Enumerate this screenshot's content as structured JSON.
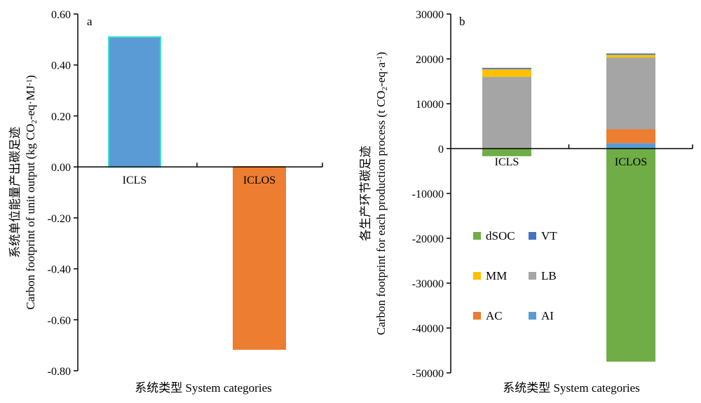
{
  "chart_data": [
    {
      "type": "bar",
      "panel_label": "a",
      "categories": [
        "ICLS",
        "ICLOS"
      ],
      "values": [
        0.51,
        -0.715
      ],
      "colors": [
        "#5b9bd5",
        "#ed7d31"
      ],
      "outline_colors": [
        "#40e0d0",
        "#ed7d31"
      ],
      "ylim": [
        -0.8,
        0.6
      ],
      "yticks": [
        "0.60",
        "0.40",
        "0.20",
        "0.00",
        "-0.20",
        "-0.40",
        "-0.60",
        "-0.80"
      ],
      "ytick_values": [
        0.6,
        0.4,
        0.2,
        0.0,
        -0.2,
        -0.4,
        -0.6,
        -0.8
      ],
      "ylabel_cn": "系统单位能量产出碳足迹",
      "ylabel_en_pre": "Carbon footprint of unit output (kg CO",
      "ylabel_en_sub": "2",
      "ylabel_en_mid": "-eq·MJ",
      "ylabel_en_sup": "-1",
      "ylabel_en_post": ")",
      "xlabel": "系统类型 System categories",
      "grid": false
    },
    {
      "type": "bar",
      "stacked": true,
      "panel_label": "b",
      "categories": [
        "ICLS",
        "ICLOS"
      ],
      "series": [
        {
          "name": "dSOC",
          "color": "#70ad47",
          "values": [
            -1700,
            -47500
          ]
        },
        {
          "name": "AI",
          "color": "#5b9bd5",
          "values": [
            0,
            1200
          ]
        },
        {
          "name": "AC",
          "color": "#ed7d31",
          "values": [
            0,
            3100
          ]
        },
        {
          "name": "LB",
          "color": "#a5a5a5",
          "values": [
            16000,
            16000
          ]
        },
        {
          "name": "MM",
          "color": "#ffc000",
          "values": [
            1700,
            600
          ]
        },
        {
          "name": "VT",
          "color": "#4472c4",
          "values": [
            300,
            300
          ]
        }
      ],
      "ylim": [
        -50000,
        30000
      ],
      "yticks": [
        "30000",
        "20000",
        "10000",
        "0",
        "-10000",
        "-20000",
        "-30000",
        "-40000",
        "-50000"
      ],
      "ytick_values": [
        30000,
        20000,
        10000,
        0,
        -10000,
        -20000,
        -30000,
        -40000,
        -50000
      ],
      "ylabel_cn": "各生产环节碳足迹",
      "ylabel_en_pre": "Carbon footprint for each production process (t CO",
      "ylabel_en_sub": "2",
      "ylabel_en_mid": "-eq·a",
      "ylabel_en_sup": "-1",
      "ylabel_en_post": ")",
      "xlabel": "系统类型 System categories",
      "legend_order": [
        "dSOC",
        "VT",
        "MM",
        "LB",
        "AC",
        "AI"
      ],
      "legend_placement": "lower-left",
      "grid": false
    }
  ]
}
